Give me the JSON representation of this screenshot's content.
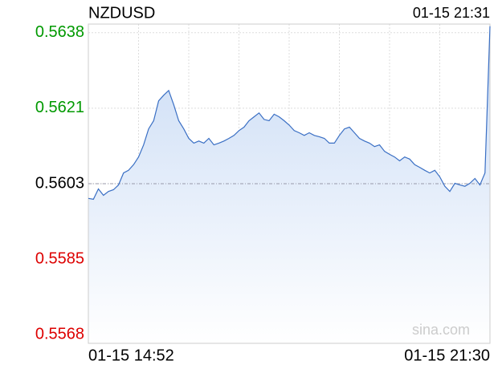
{
  "chart_data": {
    "type": "line",
    "title": "NZDUSD",
    "timestamp": "01-15 21:31",
    "watermark": "sina.com",
    "categories": [
      "01-15 14:52",
      null,
      null,
      null,
      null,
      null,
      null,
      null,
      null,
      null,
      null,
      null,
      null,
      null,
      null,
      null,
      null,
      null,
      null,
      null,
      null,
      null,
      null,
      null,
      null,
      null,
      null,
      null,
      null,
      null,
      null,
      null,
      null,
      null,
      null,
      null,
      null,
      null,
      null,
      null,
      null,
      null,
      null,
      null,
      null,
      null,
      null,
      null,
      null,
      null,
      null,
      null,
      null,
      null,
      null,
      null,
      null,
      null,
      null,
      null,
      null,
      null,
      null,
      null,
      null,
      null,
      null,
      null,
      null,
      null,
      null,
      null,
      null,
      null,
      null,
      null,
      null,
      null,
      null,
      null,
      "01-15 21:30"
    ],
    "series": [
      {
        "name": "NZDUSD",
        "color": "#3a6fc4",
        "values": [
          0.55996,
          0.55994,
          0.56018,
          0.56003,
          0.56012,
          0.56016,
          0.56027,
          0.56055,
          0.56061,
          0.56074,
          0.56092,
          0.5612,
          0.56157,
          0.56176,
          0.56222,
          0.56235,
          0.56246,
          0.56213,
          0.56176,
          0.56157,
          0.56135,
          0.56124,
          0.56129,
          0.56124,
          0.56135,
          0.5612,
          0.56124,
          0.56129,
          0.56135,
          0.56142,
          0.56153,
          0.56161,
          0.56176,
          0.56185,
          0.56194,
          0.56179,
          0.56176,
          0.56191,
          0.56185,
          0.56176,
          0.56166,
          0.56153,
          0.56148,
          0.56142,
          0.56148,
          0.56142,
          0.56139,
          0.56135,
          0.56124,
          0.56124,
          0.56142,
          0.56157,
          0.56161,
          0.56148,
          0.56135,
          0.56129,
          0.56124,
          0.56116,
          0.5612,
          0.56105,
          0.56098,
          0.56092,
          0.56083,
          0.56092,
          0.56087,
          0.56074,
          0.56068,
          0.56061,
          0.56055,
          0.56061,
          0.56046,
          0.56024,
          0.56012,
          0.56031,
          0.56027,
          0.56024,
          0.56031,
          0.56042,
          0.56027,
          0.56055,
          0.56395
        ]
      }
    ],
    "ylim": [
      0.5566,
      0.564
    ],
    "yticks": [
      0.5638,
      {
        "value": 0.56205,
        "label": "0.5621"
      },
      0.5603,
      {
        "value": 0.55855,
        "label": "0.5585"
      },
      0.5568
    ],
    "baseline": 0.5603,
    "up_color": "#009900",
    "down_color": "#dd0000",
    "grid": true,
    "area_fill": true
  }
}
